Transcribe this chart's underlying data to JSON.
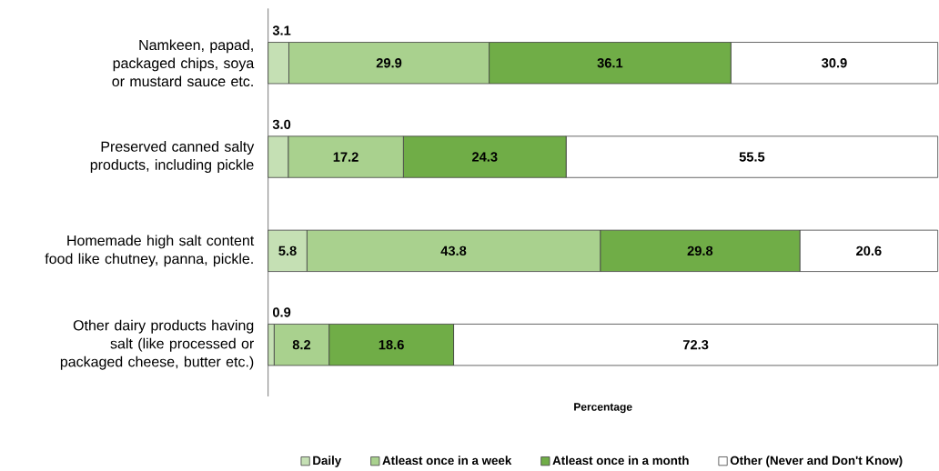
{
  "chart_data": {
    "type": "bar",
    "orientation": "horizontal",
    "stacked": true,
    "legend": "bottom",
    "xlabel": "Percentage",
    "categories": [
      "Namkeen, papad, packaged chips, soya or mustard  sauce etc.",
      "Preserved canned salty products, including pickle",
      "Homemade high salt content food like chutney, panna, pickle.",
      "Other dairy products having salt (like processed or packaged cheese, butter etc.)"
    ],
    "series": [
      {
        "name": "Daily",
        "color": "#c5e0b4",
        "values": [
          3.1,
          3.0,
          5.8,
          0.9
        ],
        "value_labels": [
          "3.1",
          "3.0",
          "5.8",
          "0.9"
        ]
      },
      {
        "name": "Atleast once in a week",
        "color": "#a9d18e",
        "values": [
          29.9,
          17.2,
          43.8,
          8.2
        ],
        "value_labels": [
          "29.9",
          "17.2",
          "43.8",
          "8.2"
        ]
      },
      {
        "name": "Atleast once in a month",
        "color": "#70ad47",
        "values": [
          36.1,
          24.3,
          29.8,
          18.6
        ],
        "value_labels": [
          "36.1",
          "24.3",
          "29.8",
          "18.6"
        ]
      },
      {
        "name": "Other (Never and Don't Know)",
        "color": "#ffffff",
        "values": [
          30.9,
          55.5,
          20.6,
          72.3
        ],
        "value_labels": [
          "30.9",
          "55.5",
          "20.6",
          "72.3"
        ]
      }
    ]
  }
}
